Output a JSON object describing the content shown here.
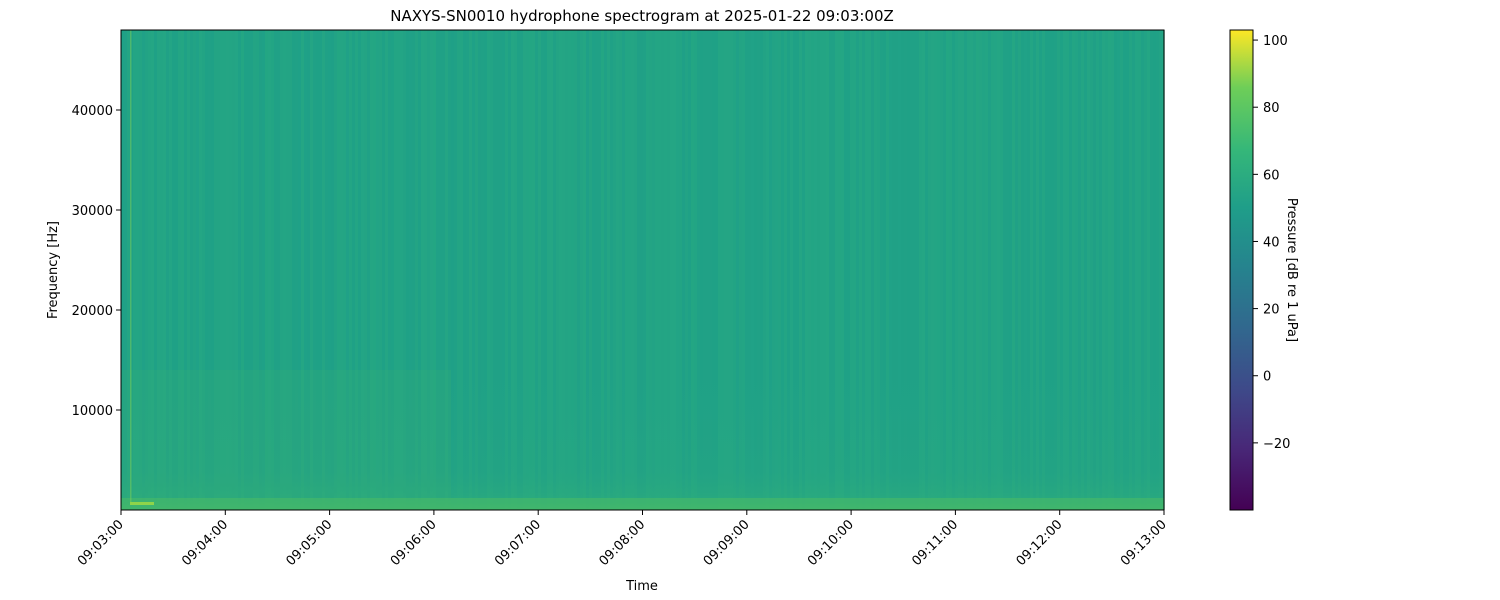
{
  "chart_data": {
    "type": "heatmap",
    "title": "NAXYS-SN0010 hydrophone spectrogram at 2025-01-22 09:03:00Z",
    "xlabel": "Time",
    "ylabel": "Frequency [Hz]",
    "x_ticks": [
      "09:03:00",
      "09:04:00",
      "09:05:00",
      "09:06:00",
      "09:07:00",
      "09:08:00",
      "09:09:00",
      "09:10:00",
      "09:11:00",
      "09:12:00",
      "09:13:00"
    ],
    "xlim": [
      "09:03:00",
      "09:13:00"
    ],
    "y_ticks": [
      10000,
      20000,
      30000,
      40000
    ],
    "ylim": [
      0,
      48000
    ],
    "colormap": "viridis",
    "colorbar": {
      "label": "Pressure [dB re 1 uPa]",
      "ticks": [
        -20,
        0,
        20,
        40,
        60,
        80,
        100
      ],
      "tick_labels": [
        "−20",
        "0",
        "20",
        "40",
        "60",
        "80",
        "100"
      ],
      "range": [
        -40,
        103
      ]
    },
    "typical_level_db": 45,
    "features": [
      {
        "description": "broadband low-frequency energy below ~1000 Hz across whole record",
        "level_db": 60
      },
      {
        "description": "elevated energy 0-10000 Hz between 09:03:30 and 09:06:00",
        "level_db": 55
      },
      {
        "description": "transient vertical line near 09:03:05",
        "level_db": 70
      }
    ]
  }
}
